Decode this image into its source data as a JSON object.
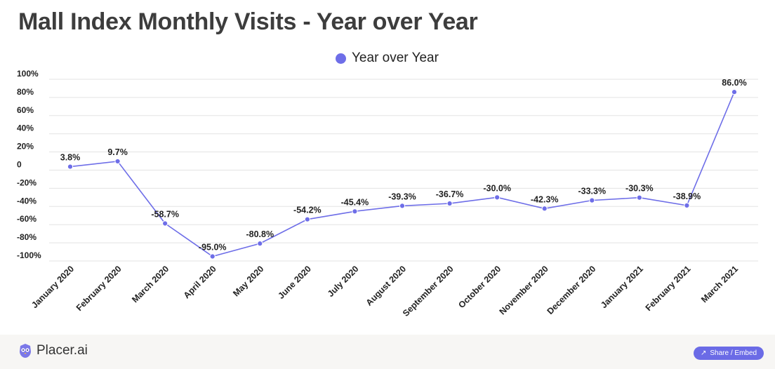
{
  "page": {
    "title": "Mall Index Monthly Visits - Year over Year"
  },
  "colors": {
    "series": "#6e6ee8",
    "grid": "#e3e3e3",
    "footer_bg": "#f7f6f4",
    "share_button": "#6b6be6"
  },
  "footer": {
    "brand": "Placer.ai",
    "brand_icon": "placer-owl-logo-icon",
    "share_label": "Share / Embed",
    "share_icon": "share-icon"
  },
  "chart_data": {
    "type": "line",
    "title": "Mall Index Monthly Visits - Year over Year",
    "legend_position": "top-center",
    "grid": true,
    "categories": [
      "January 2020",
      "February 2020",
      "March 2020",
      "April 2020",
      "May 2020",
      "June 2020",
      "July 2020",
      "August 2020",
      "September 2020",
      "October 2020",
      "November 2020",
      "December 2020",
      "January 2021",
      "February 2021",
      "March 2021"
    ],
    "series": [
      {
        "name": "Year over Year",
        "values": [
          3.8,
          9.7,
          -58.7,
          -95.0,
          -80.8,
          -54.2,
          -45.4,
          -39.3,
          -36.7,
          -30.0,
          -42.3,
          -33.3,
          -30.3,
          -38.9,
          86.0
        ],
        "labels": [
          "3.8%",
          "9.7%",
          "-58.7%",
          "-95.0%",
          "-80.8%",
          "-54.2%",
          "-45.4%",
          "-39.3%",
          "-36.7%",
          "-30.0%",
          "-42.3%",
          "-33.3%",
          "-30.3%",
          "-38.9%",
          "86.0%"
        ]
      }
    ],
    "ylim": [
      -100,
      100
    ],
    "yticks": [
      100,
      80,
      60,
      40,
      20,
      0,
      -20,
      -40,
      -60,
      -80,
      -100
    ],
    "ytick_labels": [
      "100%",
      "80%",
      "60%",
      "40%",
      "20%",
      "0",
      "-20%",
      "-40%",
      "-60%",
      "-80%",
      "-100%"
    ]
  }
}
